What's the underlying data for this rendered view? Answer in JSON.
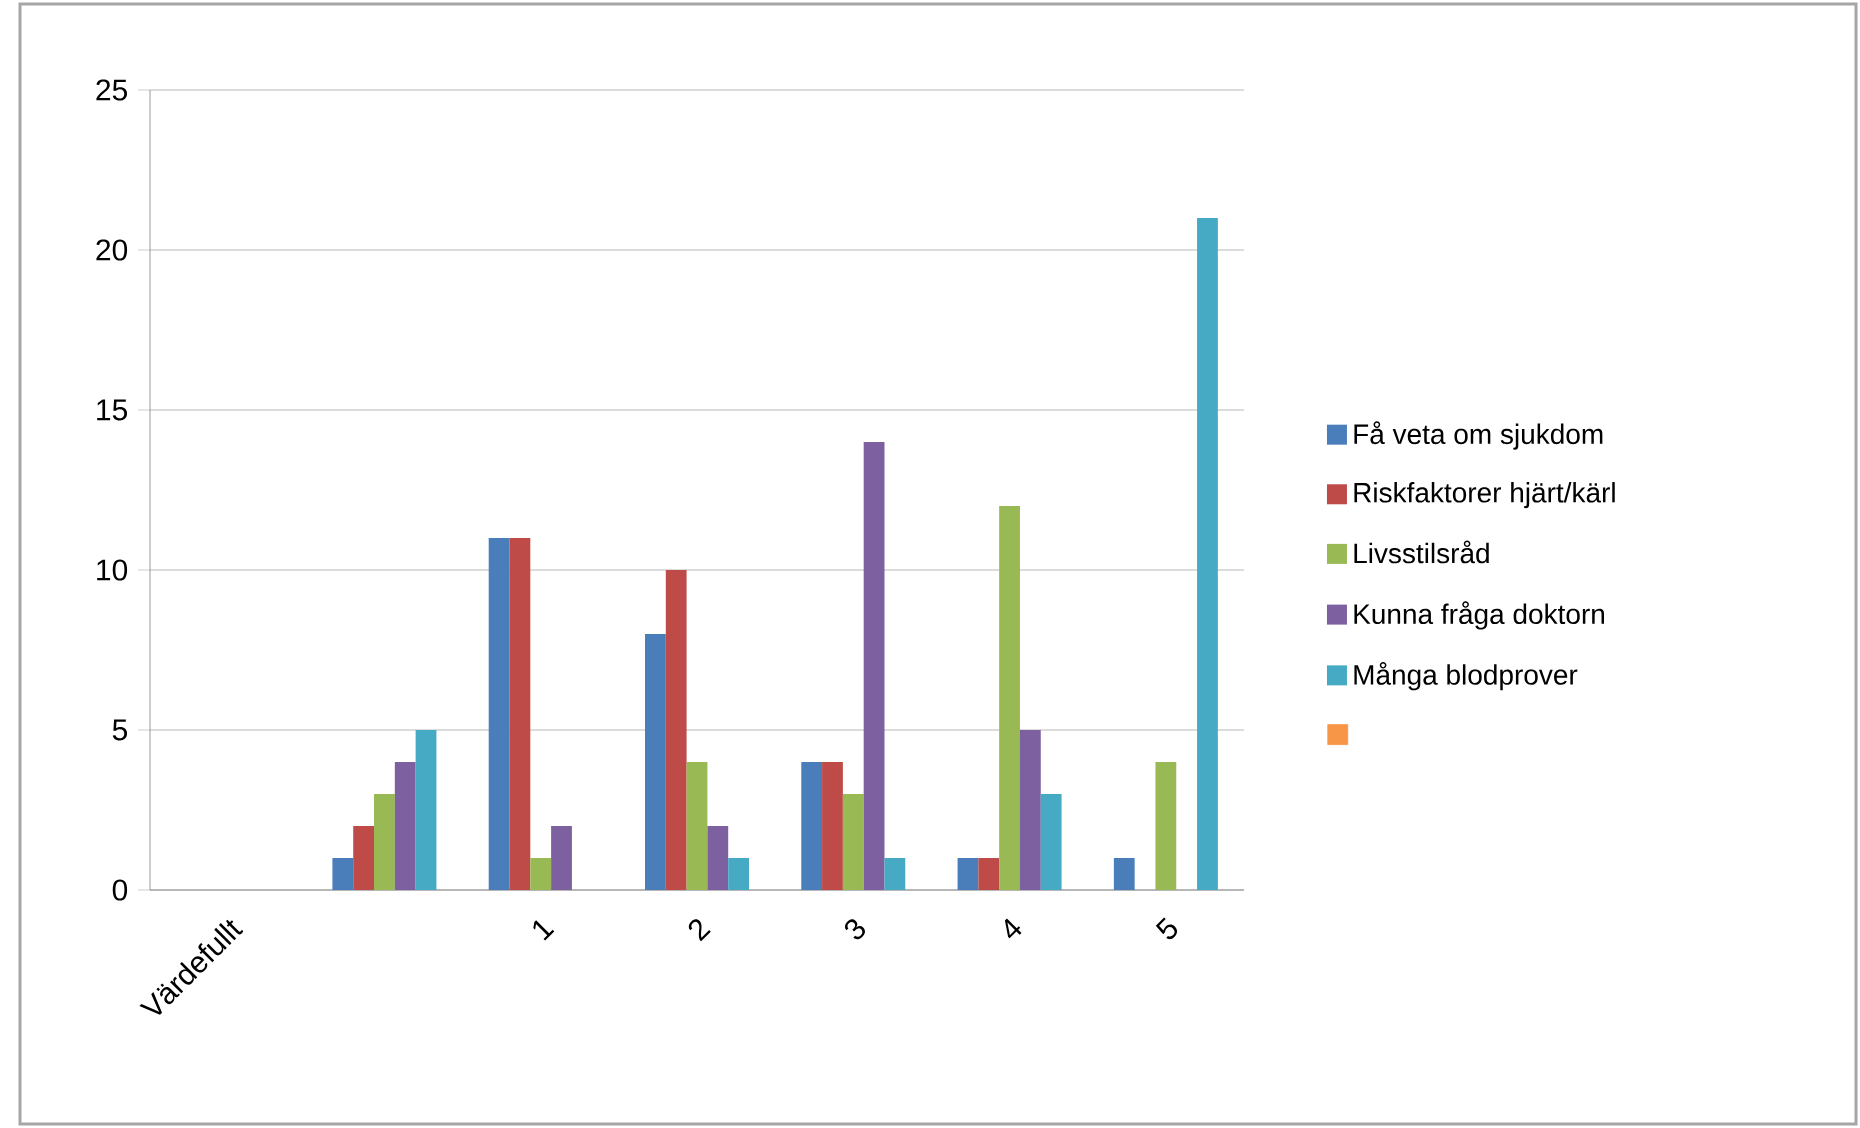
{
  "chart_data": {
    "type": "bar",
    "categories": [
      "Värdefullt",
      null,
      "1",
      "2",
      "3",
      "4",
      "5"
    ],
    "series": [
      {
        "name": "Få veta om sjukdom",
        "color": "#4a7ebb",
        "values": [
          null,
          1,
          11,
          8,
          4,
          1,
          1
        ]
      },
      {
        "name": "Riskfaktorer hjärt/kärl",
        "color": "#be4b48",
        "values": [
          null,
          2,
          11,
          10,
          4,
          1,
          0
        ]
      },
      {
        "name": "Livsstilsråd",
        "color": "#98b954",
        "values": [
          null,
          3,
          1,
          4,
          3,
          12,
          4
        ]
      },
      {
        "name": "Kunna fråga doktorn",
        "color": "#7d60a0",
        "values": [
          null,
          4,
          2,
          2,
          14,
          5,
          0
        ]
      },
      {
        "name": "Många blodprover",
        "color": "#46aac5",
        "values": [
          null,
          5,
          0,
          1,
          1,
          3,
          21
        ]
      },
      {
        "color": "#f79646",
        "values": [
          null,
          null,
          null,
          null,
          null,
          null,
          null
        ]
      }
    ],
    "ylim": [
      0,
      25
    ],
    "yticks": [
      0,
      5,
      10,
      15,
      20,
      25
    ],
    "grid": "y",
    "legend": "right"
  }
}
